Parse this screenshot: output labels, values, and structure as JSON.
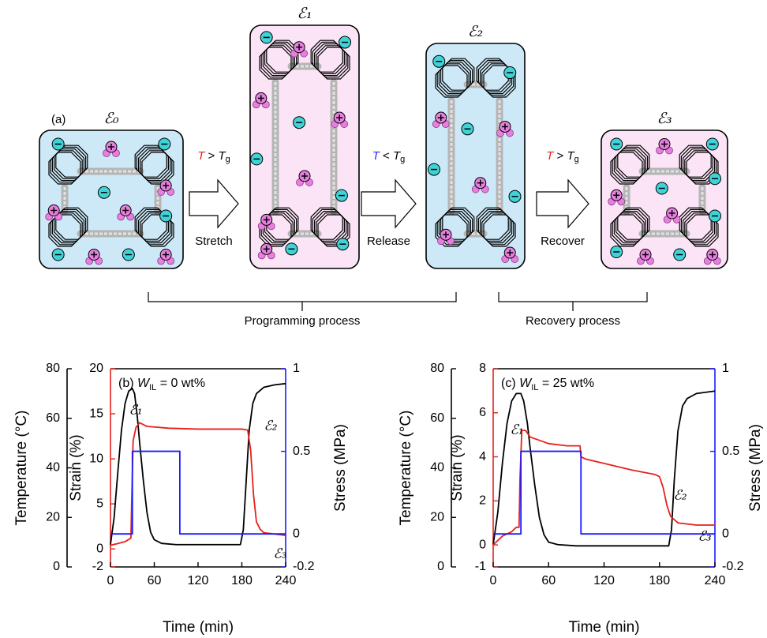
{
  "diagram": {
    "label": "(a)",
    "states": [
      "ℰ₀",
      "ℰ₁",
      "ℰ₂",
      "ℰ₃"
    ],
    "steps": [
      {
        "name": "Stretch",
        "color": "#e8201a",
        "condition": [
          "T",
          " > ",
          "T",
          "g"
        ]
      },
      {
        "name": "Release",
        "color": "#2b2bff",
        "condition": [
          "T",
          " < ",
          "T",
          "g"
        ]
      },
      {
        "name": "Recover",
        "color": "#e8201a",
        "condition": [
          "T",
          " > ",
          "T",
          "g"
        ]
      }
    ],
    "phases": [
      "Programming process",
      "Recovery process"
    ]
  },
  "chart_data": [
    {
      "type": "line",
      "title": [
        "(b) ",
        "W",
        "IL",
        " = 0 wt%"
      ],
      "xlabel": "Time (min)",
      "ylabel": "Temperature (°C)",
      "y2label": "Strain (%)",
      "y3label": "Stress (MPa)",
      "xlim": [
        0,
        240
      ],
      "xticks": [
        0,
        60,
        120,
        180,
        240
      ],
      "ylim": [
        0,
        80
      ],
      "yticks": [
        0,
        20,
        40,
        60,
        80
      ],
      "y2lim": [
        -2,
        20
      ],
      "y2ticks": [
        -2,
        0,
        5,
        10,
        15,
        20
      ],
      "y3lim": [
        -0.2,
        1
      ],
      "y3ticks": [
        -0.2,
        0,
        0.5,
        1
      ],
      "annotations": [
        "ℰ₁",
        "ℰ₂",
        "ℰ₃"
      ],
      "series": [
        {
          "name": "Temperature",
          "axis": "y",
          "color": "#000000",
          "x": [
            0,
            5,
            10,
            15,
            20,
            25,
            30,
            33,
            37,
            40,
            45,
            50,
            55,
            60,
            70,
            90,
            120,
            150,
            178,
            182,
            186,
            190,
            195,
            200,
            210,
            225,
            240
          ],
          "values": [
            9,
            20,
            38,
            55,
            66,
            71,
            72,
            70,
            60,
            50,
            35,
            22,
            14,
            11,
            9.5,
            9,
            9,
            9,
            9,
            15,
            35,
            55,
            66,
            70,
            72.5,
            73.5,
            74
          ]
        },
        {
          "name": "Strain",
          "axis": "y2",
          "color": "#e8201a",
          "x": [
            0,
            10,
            20,
            28,
            29,
            31,
            35,
            40,
            50,
            80,
            120,
            150,
            180,
            188,
            192,
            196,
            200,
            205,
            210,
            240
          ],
          "values": [
            0.4,
            0.6,
            0.8,
            1.2,
            5,
            12,
            13.5,
            14,
            13.6,
            13.4,
            13.3,
            13.3,
            13.3,
            13.2,
            11,
            6,
            3,
            2.2,
            1.8,
            1.5
          ]
        },
        {
          "name": "Stress",
          "axis": "y3",
          "color": "#1a1aff",
          "x": [
            0,
            30,
            30,
            95,
            95,
            240
          ],
          "values": [
            0,
            0,
            0.5,
            0.5,
            0,
            0
          ]
        }
      ]
    },
    {
      "type": "line",
      "title": [
        "(c) ",
        "W",
        "IL",
        " = 25 wt%"
      ],
      "xlabel": "Time (min)",
      "ylabel": "Temperature (°C)",
      "y2label": "Strain (%)",
      "y3label": "Stress (MPa)",
      "xlim": [
        0,
        240
      ],
      "xticks": [
        0,
        60,
        120,
        180,
        240
      ],
      "ylim": [
        0,
        80
      ],
      "yticks": [
        0,
        20,
        40,
        60,
        80
      ],
      "y2lim": [
        -1,
        8
      ],
      "y2ticks": [
        -1,
        0,
        2,
        4,
        6,
        8
      ],
      "y3lim": [
        -0.2,
        1
      ],
      "y3ticks": [
        -0.2,
        0,
        0.5,
        1
      ],
      "annotations": [
        "ℰ₁",
        "ℰ₂",
        "ℰ₃"
      ],
      "series": [
        {
          "name": "Temperature",
          "axis": "y",
          "color": "#000000",
          "x": [
            0,
            5,
            10,
            15,
            20,
            25,
            30,
            33,
            37,
            40,
            45,
            50,
            55,
            60,
            70,
            90,
            120,
            150,
            190,
            193,
            196,
            200,
            205,
            210,
            220,
            240
          ],
          "values": [
            9,
            22,
            42,
            58,
            67,
            70,
            70,
            67,
            58,
            48,
            33,
            20,
            13,
            10,
            9,
            8.5,
            8.5,
            8.5,
            8.5,
            15,
            35,
            55,
            65,
            68,
            70,
            71
          ]
        },
        {
          "name": "Strain",
          "axis": "y2",
          "color": "#e8201a",
          "x": [
            0,
            5,
            10,
            20,
            25,
            28,
            29,
            31,
            35,
            40,
            60,
            80,
            94,
            95,
            100,
            120,
            150,
            175,
            180,
            184,
            188,
            192,
            200,
            220,
            240
          ],
          "values": [
            0,
            0.2,
            0.4,
            0.6,
            0.8,
            0.8,
            3,
            5.2,
            5.2,
            4.9,
            4.6,
            4.5,
            4.5,
            4.0,
            3.9,
            3.7,
            3.4,
            3.2,
            3.1,
            2.6,
            1.8,
            1.3,
            1.0,
            0.9,
            0.9
          ]
        },
        {
          "name": "Stress",
          "axis": "y3",
          "color": "#1a1aff",
          "x": [
            0,
            30,
            30,
            95,
            95,
            240
          ],
          "values": [
            0,
            0,
            0.5,
            0.5,
            0,
            0
          ]
        }
      ]
    }
  ]
}
